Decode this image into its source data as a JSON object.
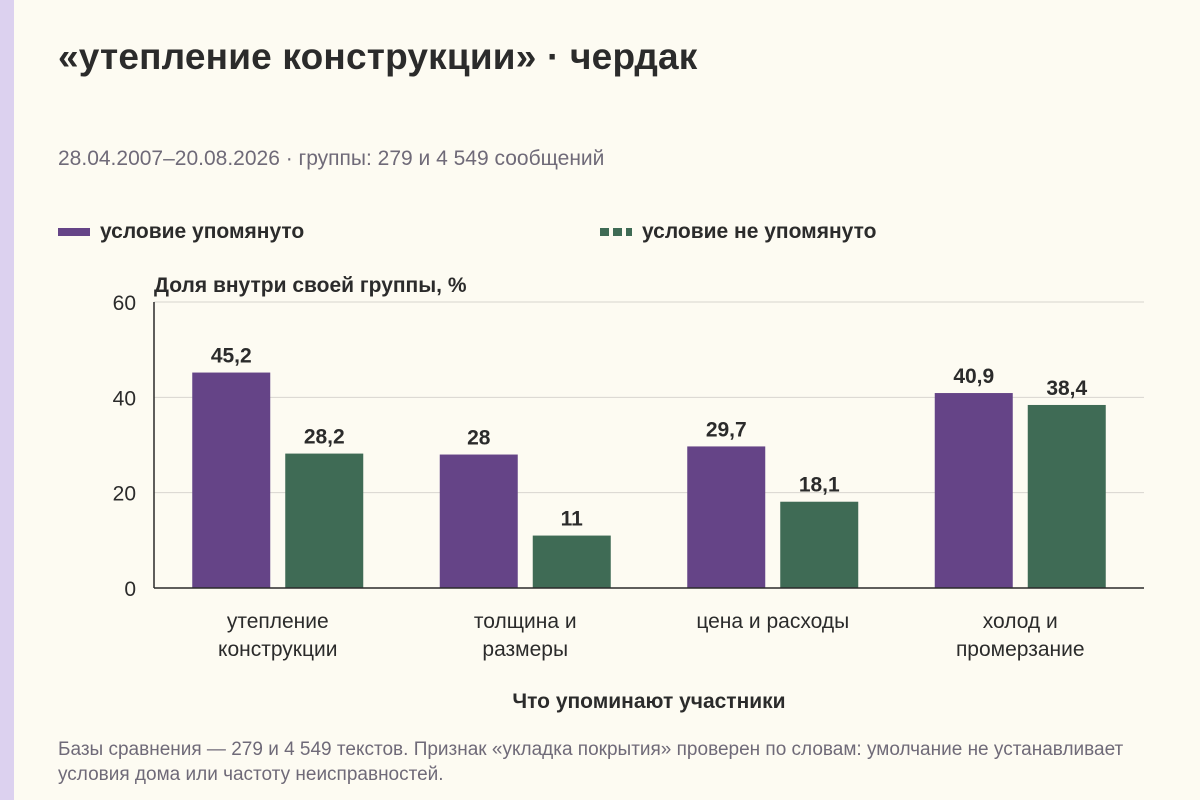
{
  "title": "«утепление конструкции» · чердак",
  "subtitle": "28.04.2007–20.08.2026 · группы: 279 и 4 549 сообщений",
  "legend": [
    {
      "label": "условие упомянуто",
      "color": "#654487",
      "style": "solid"
    },
    {
      "label": "условие не упомянуто",
      "color": "#3f6b55",
      "style": "dashed"
    }
  ],
  "footnote": "Базы сравнения — 279 и 4 549 текстов. Признак «укладка покрытия» проверен по словам: умолчание не устанавливает условия дома или частоту неисправностей.",
  "chart_data": {
    "type": "bar",
    "title": "«утепление конструкции» · чердак",
    "ylabel": "Доля внутри своей группы, %",
    "xlabel": "Что упоминают участники",
    "ylim": [
      0,
      60
    ],
    "yticks": [
      0,
      20,
      40,
      60
    ],
    "grid": true,
    "legend_position": "top",
    "categories": [
      [
        "утепление",
        "конструкции"
      ],
      [
        "толщина и",
        "размеры"
      ],
      [
        "цена и расходы"
      ],
      [
        "холод и",
        "промерзание"
      ]
    ],
    "series": [
      {
        "name": "условие упомянуто",
        "color": "#654487",
        "values": [
          45.2,
          28,
          29.7,
          40.9
        ],
        "labels": [
          "45,2",
          "28",
          "29,7",
          "40,9"
        ]
      },
      {
        "name": "условие не упомянуто",
        "color": "#3f6b55",
        "values": [
          28.2,
          11,
          18.1,
          38.4
        ],
        "labels": [
          "28,2",
          "11",
          "18,1",
          "38,4"
        ]
      }
    ]
  }
}
